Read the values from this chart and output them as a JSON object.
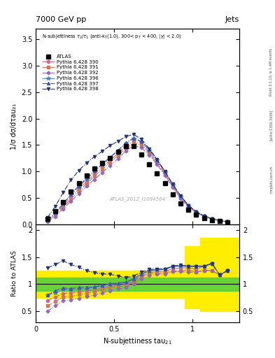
{
  "title_top": "7000 GeV pp",
  "title_right": "Jets",
  "watermark": "ATLAS_2012_I1094564",
  "rivet_label": "Rivet 3.1.10, ≥ 1.4M events",
  "arxiv_label": "[arXiv:1306.3436]",
  "mcplots_label": "mcplots.cern.ch",
  "ylabel_main": "1/σ dσ/dτau₂₁",
  "ylabel_ratio": "Ratio to ATLAS",
  "xlim": [
    0,
    1.3
  ],
  "ylim_main": [
    0,
    3.7
  ],
  "ylim_ratio": [
    0.3,
    2.1
  ],
  "x_atlas": [
    0.075,
    0.125,
    0.175,
    0.225,
    0.275,
    0.325,
    0.375,
    0.425,
    0.475,
    0.525,
    0.575,
    0.625,
    0.675,
    0.725,
    0.775,
    0.825,
    0.875,
    0.925,
    0.975,
    1.025,
    1.075,
    1.125,
    1.175,
    1.225
  ],
  "y_atlas": [
    0.1,
    0.25,
    0.42,
    0.62,
    0.78,
    0.93,
    1.06,
    1.16,
    1.26,
    1.37,
    1.48,
    1.48,
    1.32,
    1.13,
    0.96,
    0.78,
    0.57,
    0.4,
    0.27,
    0.18,
    0.12,
    0.08,
    0.06,
    0.04
  ],
  "series": [
    {
      "label": "Pythia 6.428 390",
      "color": "#cc6688",
      "marker": "o",
      "linestyle": "-.",
      "markersize": 3,
      "x": [
        0.075,
        0.125,
        0.175,
        0.225,
        0.275,
        0.325,
        0.375,
        0.425,
        0.475,
        0.525,
        0.575,
        0.625,
        0.675,
        0.725,
        0.775,
        0.825,
        0.875,
        0.925,
        0.975,
        1.025,
        1.075,
        1.125,
        1.175,
        1.225
      ],
      "y": [
        0.07,
        0.19,
        0.35,
        0.52,
        0.67,
        0.81,
        0.95,
        1.08,
        1.21,
        1.34,
        1.48,
        1.57,
        1.52,
        1.37,
        1.18,
        0.97,
        0.73,
        0.52,
        0.35,
        0.23,
        0.16,
        0.11,
        0.07,
        0.05
      ],
      "ratio": [
        0.7,
        0.76,
        0.83,
        0.84,
        0.86,
        0.87,
        0.9,
        0.93,
        0.96,
        0.98,
        1.0,
        1.06,
        1.15,
        1.21,
        1.23,
        1.24,
        1.28,
        1.3,
        1.3,
        1.28,
        1.33,
        1.38,
        1.17,
        1.25
      ]
    },
    {
      "label": "Pythia 6.428 391",
      "color": "#cc7755",
      "marker": "s",
      "linestyle": "-.",
      "markersize": 3,
      "x": [
        0.075,
        0.125,
        0.175,
        0.225,
        0.275,
        0.325,
        0.375,
        0.425,
        0.475,
        0.525,
        0.575,
        0.625,
        0.675,
        0.725,
        0.775,
        0.825,
        0.875,
        0.925,
        0.975,
        1.025,
        1.075,
        1.125,
        1.175,
        1.225
      ],
      "y": [
        0.06,
        0.17,
        0.32,
        0.48,
        0.63,
        0.77,
        0.91,
        1.04,
        1.17,
        1.3,
        1.44,
        1.54,
        1.49,
        1.34,
        1.15,
        0.94,
        0.71,
        0.5,
        0.34,
        0.22,
        0.15,
        0.1,
        0.07,
        0.05
      ],
      "ratio": [
        0.6,
        0.68,
        0.76,
        0.77,
        0.81,
        0.83,
        0.86,
        0.9,
        0.93,
        0.95,
        0.97,
        1.04,
        1.13,
        1.19,
        1.2,
        1.21,
        1.24,
        1.25,
        1.26,
        1.22,
        1.25,
        1.25,
        1.17,
        1.25
      ]
    },
    {
      "label": "Pythia 6.428 392",
      "color": "#9966bb",
      "marker": "D",
      "linestyle": "-.",
      "markersize": 2.5,
      "x": [
        0.075,
        0.125,
        0.175,
        0.225,
        0.275,
        0.325,
        0.375,
        0.425,
        0.475,
        0.525,
        0.575,
        0.625,
        0.675,
        0.725,
        0.775,
        0.825,
        0.875,
        0.925,
        0.975,
        1.025,
        1.075,
        1.125,
        1.175,
        1.225
      ],
      "y": [
        0.05,
        0.15,
        0.29,
        0.44,
        0.58,
        0.72,
        0.85,
        0.98,
        1.11,
        1.24,
        1.39,
        1.49,
        1.45,
        1.31,
        1.13,
        0.93,
        0.7,
        0.49,
        0.33,
        0.22,
        0.15,
        0.1,
        0.07,
        0.05
      ],
      "ratio": [
        0.5,
        0.6,
        0.69,
        0.71,
        0.74,
        0.77,
        0.8,
        0.84,
        0.88,
        0.91,
        0.94,
        1.01,
        1.1,
        1.16,
        1.18,
        1.19,
        1.23,
        1.23,
        1.22,
        1.22,
        1.25,
        1.25,
        1.17,
        1.25
      ]
    },
    {
      "label": "Pythia 6.428 396",
      "color": "#5588bb",
      "marker": "*",
      "linestyle": "-.",
      "markersize": 4,
      "x": [
        0.075,
        0.125,
        0.175,
        0.225,
        0.275,
        0.325,
        0.375,
        0.425,
        0.475,
        0.525,
        0.575,
        0.625,
        0.675,
        0.725,
        0.775,
        0.825,
        0.875,
        0.925,
        0.975,
        1.025,
        1.075,
        1.125,
        1.175,
        1.225
      ],
      "y": [
        0.08,
        0.21,
        0.38,
        0.56,
        0.71,
        0.86,
        1.0,
        1.13,
        1.26,
        1.39,
        1.53,
        1.62,
        1.56,
        1.4,
        1.21,
        0.99,
        0.75,
        0.53,
        0.36,
        0.24,
        0.16,
        0.11,
        0.07,
        0.05
      ],
      "ratio": [
        0.8,
        0.84,
        0.9,
        0.9,
        0.91,
        0.92,
        0.94,
        0.97,
        1.0,
        1.01,
        1.03,
        1.09,
        1.18,
        1.24,
        1.26,
        1.27,
        1.32,
        1.33,
        1.33,
        1.33,
        1.33,
        1.38,
        1.17,
        1.25
      ]
    },
    {
      "label": "Pythia 6.428 397",
      "color": "#4455aa",
      "marker": "^",
      "linestyle": "-.",
      "markersize": 3,
      "x": [
        0.075,
        0.125,
        0.175,
        0.225,
        0.275,
        0.325,
        0.375,
        0.425,
        0.475,
        0.525,
        0.575,
        0.625,
        0.675,
        0.725,
        0.775,
        0.825,
        0.875,
        0.925,
        0.975,
        1.025,
        1.075,
        1.125,
        1.175,
        1.225
      ],
      "y": [
        0.08,
        0.22,
        0.39,
        0.57,
        0.73,
        0.87,
        1.01,
        1.14,
        1.27,
        1.4,
        1.54,
        1.63,
        1.57,
        1.41,
        1.22,
        1.0,
        0.76,
        0.54,
        0.36,
        0.24,
        0.16,
        0.11,
        0.07,
        0.05
      ],
      "ratio": [
        0.8,
        0.88,
        0.93,
        0.92,
        0.94,
        0.94,
        0.95,
        0.98,
        1.01,
        1.02,
        1.04,
        1.1,
        1.19,
        1.25,
        1.27,
        1.28,
        1.33,
        1.35,
        1.33,
        1.33,
        1.33,
        1.38,
        1.17,
        1.25
      ]
    },
    {
      "label": "Pythia 6.428 398",
      "color": "#223377",
      "marker": "v",
      "linestyle": "-.",
      "markersize": 3,
      "x": [
        0.075,
        0.125,
        0.175,
        0.225,
        0.275,
        0.325,
        0.375,
        0.425,
        0.475,
        0.525,
        0.575,
        0.625,
        0.675,
        0.725,
        0.775,
        0.825,
        0.875,
        0.925,
        0.975,
        1.025,
        1.075,
        1.125,
        1.175,
        1.225
      ],
      "y": [
        0.13,
        0.34,
        0.6,
        0.84,
        1.02,
        1.16,
        1.28,
        1.38,
        1.49,
        1.57,
        1.66,
        1.7,
        1.61,
        1.43,
        1.23,
        1.0,
        0.76,
        0.54,
        0.36,
        0.24,
        0.16,
        0.11,
        0.07,
        0.05
      ],
      "ratio": [
        1.3,
        1.36,
        1.43,
        1.36,
        1.31,
        1.25,
        1.21,
        1.19,
        1.18,
        1.15,
        1.12,
        1.15,
        1.22,
        1.27,
        1.28,
        1.28,
        1.33,
        1.35,
        1.33,
        1.33,
        1.33,
        1.38,
        1.17,
        1.25
      ]
    }
  ],
  "yellow_band_x": [
    0.0,
    0.05,
    0.15,
    0.25,
    0.35,
    0.45,
    0.55,
    0.65,
    0.75,
    0.85,
    0.95,
    1.05,
    1.15,
    1.25,
    1.3
  ],
  "yellow_band_lo": [
    0.75,
    0.75,
    0.75,
    0.75,
    0.75,
    0.75,
    0.75,
    0.75,
    0.75,
    0.75,
    0.55,
    0.5,
    0.5,
    0.5,
    0.5
  ],
  "yellow_band_hi": [
    1.25,
    1.25,
    1.25,
    1.25,
    1.25,
    1.25,
    1.25,
    1.25,
    1.25,
    1.25,
    1.7,
    1.85,
    1.85,
    1.85,
    1.85
  ],
  "green_band_lo": 0.88,
  "green_band_hi": 1.12,
  "xticks": [
    0,
    0.5,
    1.0
  ],
  "xticklabels": [
    "0",
    "0.5",
    "1"
  ]
}
